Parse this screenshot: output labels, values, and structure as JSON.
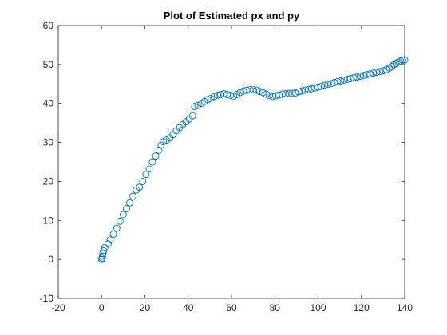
{
  "chart_data": {
    "type": "scatter",
    "title": "Plot of Estimated px and py",
    "xlabel": "",
    "ylabel": "",
    "xlim": [
      -20,
      140
    ],
    "ylim": [
      -10,
      60
    ],
    "xticks": [
      -20,
      0,
      20,
      40,
      60,
      80,
      100,
      120,
      140
    ],
    "yticks": [
      -10,
      0,
      10,
      20,
      30,
      40,
      50,
      60
    ],
    "xtick_labels": [
      "-20",
      "0",
      "20",
      "40",
      "60",
      "80",
      "100",
      "120",
      "140"
    ],
    "ytick_labels": [
      "-10",
      "0",
      "10",
      "20",
      "30",
      "40",
      "50",
      "60"
    ],
    "grid": false,
    "marker": "circle-open",
    "color": "#0072BD",
    "series": [
      {
        "x": [
          0,
          0.2,
          0.4,
          0.6,
          1.0,
          1.5,
          3,
          4,
          5.5,
          7,
          8.5,
          10,
          11.5,
          13,
          14.5,
          16,
          17.5,
          19,
          20.5,
          22,
          23.5,
          25,
          26.5,
          27.5,
          28.5,
          30,
          31.5,
          33,
          34.5,
          36,
          37.5,
          39,
          40.5,
          42,
          43,
          44.5,
          46,
          47.5,
          49,
          50.5,
          52,
          53.5,
          55,
          56.5,
          58,
          59.5,
          61,
          62.5,
          64,
          65.5,
          67,
          68.5,
          70,
          71.5,
          73,
          74.5,
          76,
          77.5,
          79,
          80.5,
          82,
          83.5,
          85,
          86.5,
          88,
          89.5,
          91,
          92.5,
          94,
          95.5,
          97,
          98.5,
          100,
          101.5,
          103,
          104.5,
          106,
          107.5,
          109,
          110.5,
          112,
          113.5,
          115,
          116.5,
          118,
          119.5,
          121,
          122.5,
          124,
          125.5,
          127,
          128.5,
          130,
          131.5,
          133,
          134,
          135,
          136,
          137,
          138,
          139,
          140
        ],
        "y": [
          0,
          0.3,
          0.8,
          1.5,
          2.2,
          3,
          4,
          5,
          6.5,
          8,
          9.8,
          11.5,
          13,
          14.5,
          16.2,
          17.8,
          18.5,
          20,
          21.8,
          23.2,
          25,
          26.5,
          28,
          29.3,
          30.2,
          30.6,
          31.2,
          32,
          33,
          33.8,
          34.6,
          35.3,
          36,
          36.8,
          39.2,
          39.5,
          40,
          40.5,
          41,
          41.3,
          41.8,
          42.1,
          42.3,
          42.5,
          42.3,
          42.1,
          41.9,
          42.3,
          42.8,
          43.2,
          43.4,
          43.5,
          43.5,
          43.4,
          43.1,
          42.8,
          42.4,
          42,
          41.8,
          42,
          42.2,
          42.4,
          42.5,
          42.6,
          42.6,
          42.7,
          43,
          43.2,
          43.4,
          43.6,
          43.8,
          44,
          44.2,
          44.4,
          44.7,
          44.9,
          45.1,
          45.4,
          45.6,
          45.8,
          46,
          46.2,
          46.4,
          46.6,
          46.8,
          47,
          47.2,
          47.4,
          47.6,
          47.8,
          48,
          48.2,
          48.4,
          48.7,
          49.1,
          49.5,
          49.9,
          50.3,
          50.6,
          50.9,
          51.1,
          51.2
        ]
      }
    ]
  }
}
